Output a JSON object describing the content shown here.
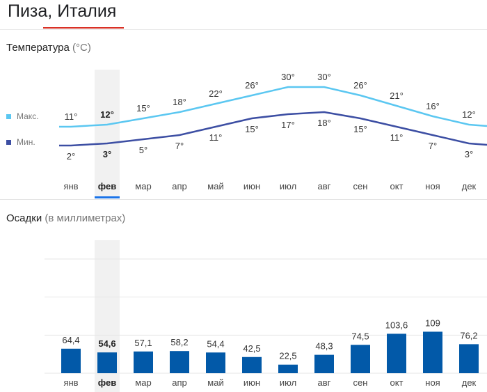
{
  "title": "Пиза, Италия",
  "temperature": {
    "label": "Температура",
    "unit": "(°C)",
    "legend_max": "Макс.",
    "legend_min": "Мин."
  },
  "precipitation": {
    "label": "Осадки",
    "unit": "(в миллиметрах)"
  },
  "colors": {
    "max_line": "#5bc7f1",
    "min_line": "#3c4ea3",
    "bar": "#0259a8",
    "accent": "#d93025",
    "selected_underline": "#1a73e8",
    "highlight": "#f1f1f1"
  },
  "selected_month_index": 1,
  "chart_data": [
    {
      "type": "line",
      "categories": [
        "янв",
        "фев",
        "мар",
        "апр",
        "май",
        "июн",
        "июл",
        "авг",
        "сен",
        "окт",
        "ноя",
        "дек"
      ],
      "series": [
        {
          "name": "Макс.",
          "values": [
            11,
            12,
            15,
            18,
            22,
            26,
            30,
            30,
            26,
            21,
            16,
            12
          ],
          "labels": [
            "11°",
            "12°",
            "15°",
            "18°",
            "22°",
            "26°",
            "30°",
            "30°",
            "26°",
            "21°",
            "16°",
            "12°"
          ]
        },
        {
          "name": "Мин.",
          "values": [
            2,
            3,
            5,
            7,
            11,
            15,
            17,
            18,
            15,
            11,
            7,
            3
          ],
          "labels": [
            "2°",
            "3°",
            "5°",
            "7°",
            "11°",
            "15°",
            "17°",
            "18°",
            "15°",
            "11°",
            "7°",
            "3°"
          ]
        }
      ],
      "title": "Температура",
      "ylabel": "°C",
      "grid": false,
      "legend": "left"
    },
    {
      "type": "bar",
      "categories": [
        "янв",
        "фев",
        "мар",
        "апр",
        "май",
        "июн",
        "июл",
        "авг",
        "сен",
        "окт",
        "ноя",
        "дек"
      ],
      "values": [
        64.4,
        54.6,
        57.1,
        58.2,
        54.4,
        42.5,
        22.5,
        48.3,
        74.5,
        103.6,
        109,
        76.2
      ],
      "labels": [
        "64,4",
        "54,6",
        "57,1",
        "58,2",
        "54,4",
        "42,5",
        "22,5",
        "48,3",
        "74,5",
        "103,6",
        "109",
        "76,2"
      ],
      "title": "Осадки",
      "ylabel": "мм",
      "ylim": [
        0,
        300
      ],
      "grid": true
    }
  ]
}
